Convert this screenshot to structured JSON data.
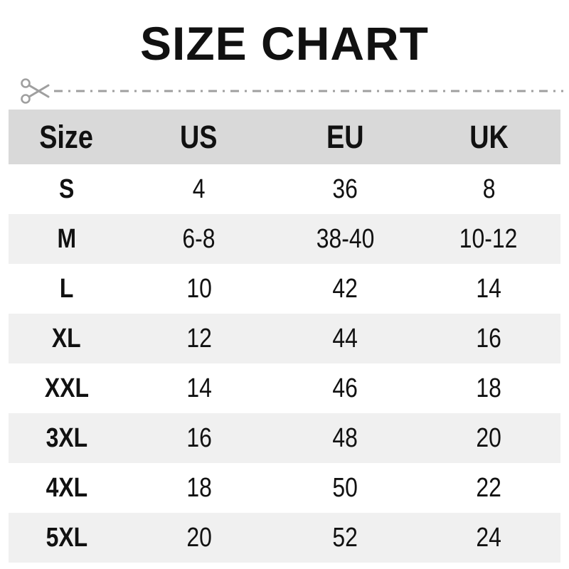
{
  "title": "SIZE CHART",
  "table": {
    "columns": [
      "Size",
      "US",
      "EU",
      "UK"
    ],
    "rows": [
      [
        "S",
        "4",
        "36",
        "8"
      ],
      [
        "M",
        "6-8",
        "38-40",
        "10-12"
      ],
      [
        "L",
        "10",
        "42",
        "14"
      ],
      [
        "XL",
        "12",
        "44",
        "16"
      ],
      [
        "XXL",
        "14",
        "46",
        "18"
      ],
      [
        "3XL",
        "16",
        "48",
        "20"
      ],
      [
        "4XL",
        "18",
        "50",
        "22"
      ],
      [
        "5XL",
        "20",
        "52",
        "24"
      ]
    ]
  },
  "colors": {
    "header_bg": "#d9d9d9",
    "alt_row_bg": "#f0f0f0",
    "text": "#111111",
    "cutline_color": "#9f9f9f",
    "background": "#ffffff"
  }
}
